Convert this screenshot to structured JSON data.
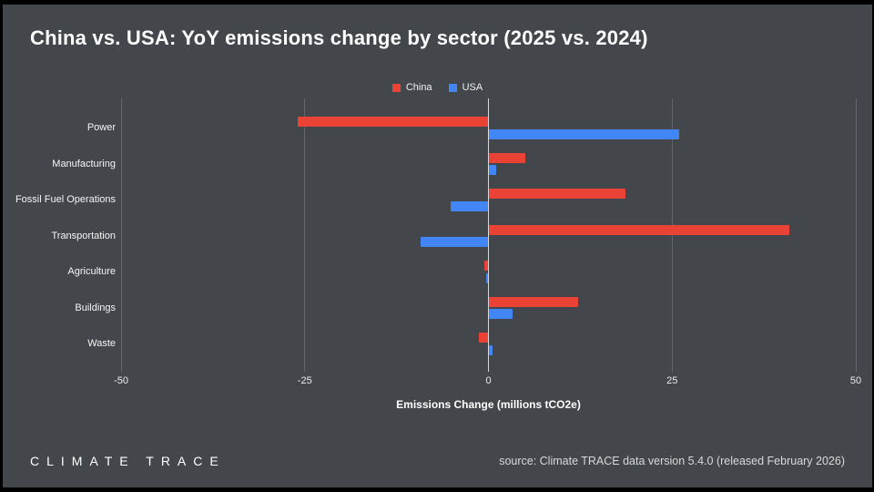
{
  "header": {
    "title": "China vs. USA: YoY emissions change by sector (2025 vs. 2024)"
  },
  "colors": {
    "background": "#43464a",
    "frame": "#000000",
    "china": "#ea4335",
    "usa": "#4285f4",
    "gridline": "#62666a",
    "zero_line": "#d9d9d9",
    "text": "#ffffff"
  },
  "chart_data": {
    "type": "bar",
    "orientation": "horizontal",
    "title": "China vs. USA: YoY emissions change by sector (2025 vs. 2024)",
    "categories": [
      "Power",
      "Manufacturing",
      "Fossil Fuel Operations",
      "Transportation",
      "Agriculture",
      "Buildings",
      "Waste"
    ],
    "series": [
      {
        "name": "China",
        "color": "#ea4335",
        "values": [
          -26,
          5,
          18.6,
          41,
          -0.5,
          12.2,
          -1.3
        ]
      },
      {
        "name": "USA",
        "color": "#4285f4",
        "values": [
          26,
          1,
          -5.2,
          -9.2,
          -0.3,
          3.3,
          0.5
        ]
      }
    ],
    "xlabel": "Emissions Change (millions tCO2e)",
    "xlim": [
      -50,
      50
    ],
    "xticks": [
      -50,
      -25,
      0,
      25,
      50
    ],
    "xtick_labels": [
      "-50",
      "-25",
      "0",
      "25",
      "50"
    ],
    "grid": true,
    "legend_position": "top-center"
  },
  "footer": {
    "logo_text": "CLIMATE TRACE",
    "source": "source: Climate TRACE data version 5.4.0 (released February 2026)"
  }
}
